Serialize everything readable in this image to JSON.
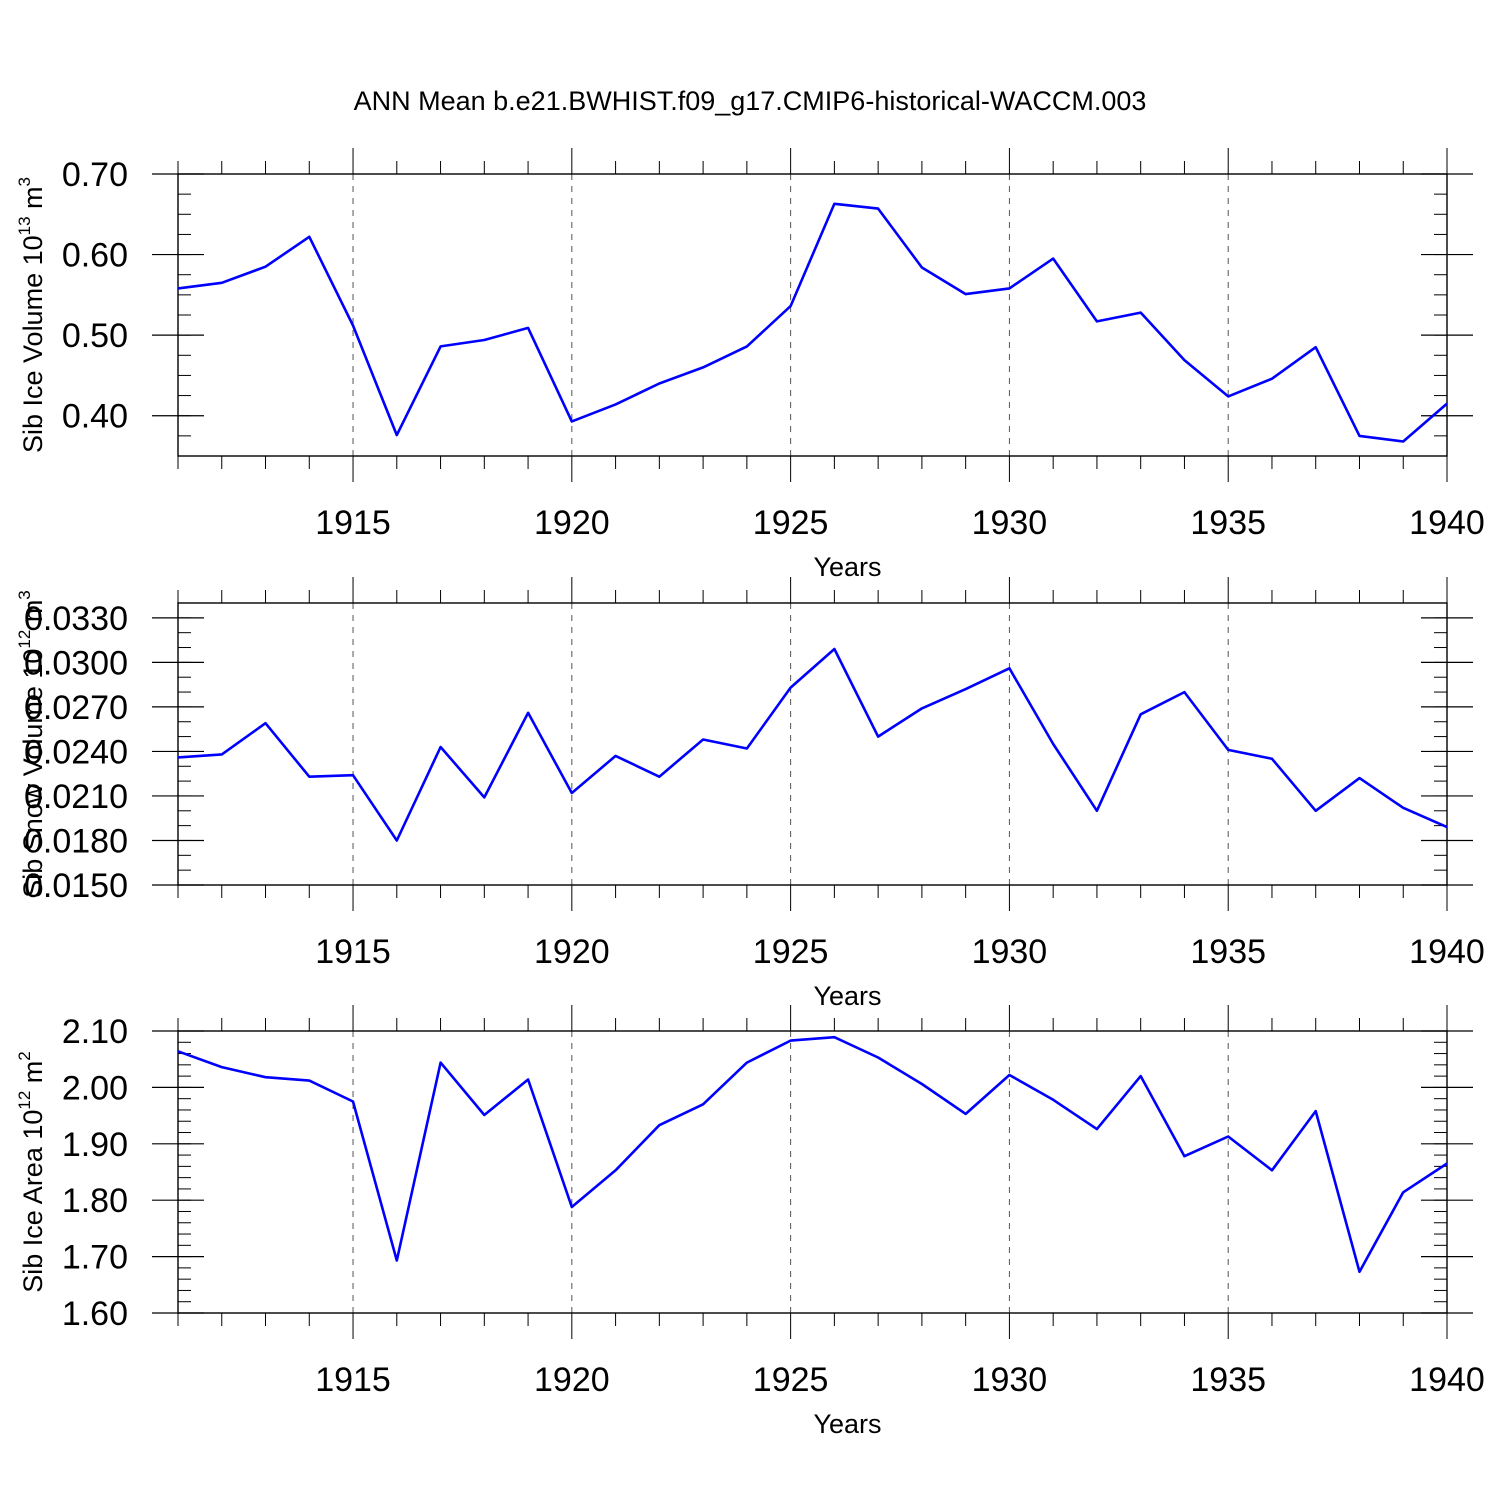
{
  "title": "ANN Mean b.e21.BWHIST.f09_g17.CMIP6-historical-WACCM.003",
  "line_color": "#0000ff",
  "chart_data": [
    {
      "type": "line",
      "ylabel": {
        "main": "Sib Ice Volume 10",
        "sup": "13",
        "unit": " m",
        "unit_sup": "3"
      },
      "xlabel": "Years",
      "xlim": [
        1911,
        1940
      ],
      "ylim": [
        0.35,
        0.7
      ],
      "yticks": [
        "0.40",
        "0.50",
        "0.60",
        "0.70"
      ],
      "xticks": [
        "1915",
        "1920",
        "1925",
        "1930",
        "1935",
        "1940"
      ],
      "x": [
        1911,
        1912,
        1913,
        1914,
        1915,
        1916,
        1917,
        1918,
        1919,
        1920,
        1921,
        1922,
        1923,
        1924,
        1925,
        1926,
        1927,
        1928,
        1929,
        1930,
        1931,
        1932,
        1933,
        1934,
        1935,
        1936,
        1937,
        1938,
        1939,
        1940
      ],
      "values": [
        0.558,
        0.565,
        0.585,
        0.622,
        0.512,
        0.376,
        0.486,
        0.494,
        0.509,
        0.393,
        0.414,
        0.44,
        0.46,
        0.486,
        0.536,
        0.663,
        0.657,
        0.584,
        0.551,
        0.558,
        0.595,
        0.517,
        0.528,
        0.469,
        0.424,
        0.446,
        0.485,
        0.375,
        0.368,
        0.415
      ]
    },
    {
      "type": "line",
      "ylabel": {
        "main": "Sib Snow Volume 10",
        "sup": "12",
        "unit": " m",
        "unit_sup": "3"
      },
      "xlabel": "Years",
      "xlim": [
        1911,
        1940
      ],
      "ylim": [
        0.015,
        0.034
      ],
      "yticks": [
        "0.0150",
        "0.0180",
        "0.0210",
        "0.0240",
        "0.0270",
        "0.0300",
        "0.0330"
      ],
      "xticks": [
        "1915",
        "1920",
        "1925",
        "1930",
        "1935",
        "1940"
      ],
      "x": [
        1911,
        1912,
        1913,
        1914,
        1915,
        1916,
        1917,
        1918,
        1919,
        1920,
        1921,
        1922,
        1923,
        1924,
        1925,
        1926,
        1927,
        1928,
        1929,
        1930,
        1931,
        1932,
        1933,
        1934,
        1935,
        1936,
        1937,
        1938,
        1939,
        1940
      ],
      "values": [
        0.0236,
        0.0238,
        0.0259,
        0.0223,
        0.0224,
        0.018,
        0.0243,
        0.0209,
        0.0266,
        0.0212,
        0.0237,
        0.0223,
        0.0248,
        0.0242,
        0.0283,
        0.0309,
        0.025,
        0.0269,
        0.0282,
        0.0296,
        0.0245,
        0.02,
        0.0265,
        0.028,
        0.0241,
        0.0235,
        0.02,
        0.0222,
        0.0202,
        0.0189
      ]
    },
    {
      "type": "line",
      "ylabel": {
        "main": "Sib Ice Area 10",
        "sup": "12",
        "unit": " m",
        "unit_sup": "2"
      },
      "xlabel": "Years",
      "xlim": [
        1911,
        1940
      ],
      "ylim": [
        1.6,
        2.1
      ],
      "yticks": [
        "1.60",
        "1.70",
        "1.80",
        "1.90",
        "2.00",
        "2.10"
      ],
      "xticks": [
        "1915",
        "1920",
        "1925",
        "1930",
        "1935",
        "1940"
      ],
      "x": [
        1911,
        1912,
        1913,
        1914,
        1915,
        1916,
        1917,
        1918,
        1919,
        1920,
        1921,
        1922,
        1923,
        1924,
        1925,
        1926,
        1927,
        1928,
        1929,
        1930,
        1931,
        1932,
        1933,
        1934,
        1935,
        1936,
        1937,
        1938,
        1939,
        1940
      ],
      "values": [
        2.064,
        2.036,
        2.018,
        2.012,
        1.975,
        1.693,
        2.044,
        1.951,
        2.014,
        1.788,
        1.853,
        1.933,
        1.97,
        2.044,
        2.083,
        2.089,
        2.053,
        2.006,
        1.953,
        2.022,
        1.978,
        1.926,
        2.02,
        1.878,
        1.913,
        1.853,
        1.958,
        1.673,
        1.814,
        1.865
      ]
    }
  ]
}
